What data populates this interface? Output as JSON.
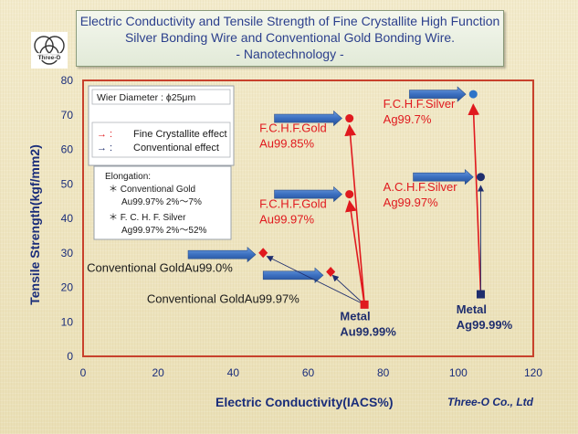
{
  "title": {
    "line1": "Electric Conductivity and Tensile Strength of Fine Crystallite   High Function",
    "line2": "Silver Bonding Wire and Conventional Gold Bonding Wire.",
    "line3": "- Nanotechnology -"
  },
  "logo": {
    "text": "Three-O",
    "icon": "three-circles-logo"
  },
  "credit": "Three-O Co., Ltd",
  "legend": {
    "diameter": "Wier Diameter : ϕ25μm",
    "fine_symbol": "→  :",
    "fine_label": "Fine Crystallite effect",
    "conv_symbol": "→  :",
    "conv_label": "Conventional effect",
    "fine_color": "#e0191e",
    "conv_color": "#1f2e6e"
  },
  "elongation": {
    "title": "Elongation:",
    "line1": "＊ Conventional Gold",
    "line2": "Au99.97% 2%～7%",
    "line3": "＊ F. C. H. F. Silver",
    "line4": "Ag99.97%  2%～52%"
  },
  "chart_data": {
    "type": "scatter",
    "xlabel": "Electric Conductivity(IACS%)",
    "ylabel": "Tensile Strength(kgf/mm2)",
    "xlim": [
      0,
      120
    ],
    "ylim": [
      0,
      80
    ],
    "xticks": [
      0,
      20,
      40,
      60,
      80,
      100,
      120
    ],
    "yticks": [
      0,
      10,
      20,
      30,
      40,
      50,
      60,
      70,
      80
    ],
    "grid": false,
    "points": [
      {
        "name": "Conventional GoldAu99.0%",
        "x": 48,
        "y": 30,
        "marker": "diamond",
        "color": "#e0191e",
        "label_color": "#1a1a1a"
      },
      {
        "name": "Conventional GoldAu99.97%",
        "x": 66,
        "y": 24.5,
        "marker": "diamond",
        "color": "#e0191e",
        "label_color": "#1a1a1a"
      },
      {
        "name": "Metal Au99.99%",
        "x": 75,
        "y": 15,
        "marker": "square",
        "color": "#e0191e",
        "label_color": "#1f2e6e"
      },
      {
        "name": "F.C.H.F.Gold Au99.97%",
        "x": 71,
        "y": 47,
        "marker": "circle",
        "color": "#e0191e",
        "label_color": "#e0191e"
      },
      {
        "name": "F.C.H.F.Gold Au99.85%",
        "x": 71,
        "y": 69,
        "marker": "circle",
        "color": "#e0191e",
        "label_color": "#e0191e"
      },
      {
        "name": "Metal Ag99.99%",
        "x": 106,
        "y": 18,
        "marker": "square",
        "color": "#1f2e6e",
        "label_color": "#1f2e6e"
      },
      {
        "name": "A.C.H.F.Silver Ag99.97%",
        "x": 106,
        "y": 52,
        "marker": "circle",
        "color": "#1f2e6e",
        "label_color": "#e0191e"
      },
      {
        "name": "F.C.H.F.Silver Ag99.7%",
        "x": 104,
        "y": 76,
        "marker": "circle",
        "color": "#2e74c8",
        "label_color": "#e0191e"
      }
    ],
    "labels": [
      {
        "lines": [
          "Conventional GoldAu99.0%"
        ],
        "x": 1,
        "y": 24.5,
        "color": "#1a1a1a"
      },
      {
        "lines": [
          "Conventional GoldAu99.97%"
        ],
        "x": 17,
        "y": 15.5,
        "color": "#1a1a1a"
      },
      {
        "lines": [
          "Metal",
          "Au99.99%"
        ],
        "x": 68.5,
        "y": 10.5,
        "color": "#1f2e6e",
        "bold": true
      },
      {
        "lines": [
          "F.C.H.F.Gold",
          "Au99.97%"
        ],
        "x": 47,
        "y": 43,
        "color": "#e0191e"
      },
      {
        "lines": [
          "F.C.H.F.Gold",
          "Au99.85%"
        ],
        "x": 47,
        "y": 65,
        "color": "#e0191e"
      },
      {
        "lines": [
          "Metal",
          "Ag99.99%"
        ],
        "x": 99.5,
        "y": 12.5,
        "color": "#1f2e6e",
        "bold": true
      },
      {
        "lines": [
          "A.C.H.F.Silver",
          "Ag99.97%"
        ],
        "x": 80,
        "y": 48,
        "color": "#e0191e"
      },
      {
        "lines": [
          "F.C.H.F.Silver",
          "Ag99.7%"
        ],
        "x": 80,
        "y": 72,
        "color": "#e0191e"
      }
    ],
    "effect_arrows": [
      {
        "effect": "fine",
        "from": [
          75,
          15
        ],
        "to": [
          71,
          45
        ]
      },
      {
        "effect": "fine",
        "from": [
          75,
          15
        ],
        "to": [
          71,
          67
        ]
      },
      {
        "effect": "fine",
        "from": [
          106,
          18
        ],
        "to": [
          104,
          73
        ]
      },
      {
        "effect": "conv",
        "from": [
          106,
          18
        ],
        "to": [
          106,
          49.5
        ]
      },
      {
        "effect": "conv",
        "from": [
          75,
          15
        ],
        "to": [
          49,
          29
        ]
      },
      {
        "effect": "conv",
        "from": [
          75,
          15
        ],
        "to": [
          66.5,
          23.5
        ]
      }
    ],
    "block_arrows": [
      {
        "x1": 51,
        "x2": 69,
        "y": 69
      },
      {
        "x1": 51,
        "x2": 69,
        "y": 47
      },
      {
        "x1": 87,
        "x2": 102,
        "y": 76
      },
      {
        "x1": 88,
        "x2": 104,
        "y": 52
      },
      {
        "x1": 28,
        "x2": 46,
        "y": 29.5
      },
      {
        "x1": 48,
        "x2": 64,
        "y": 23.5
      }
    ]
  }
}
